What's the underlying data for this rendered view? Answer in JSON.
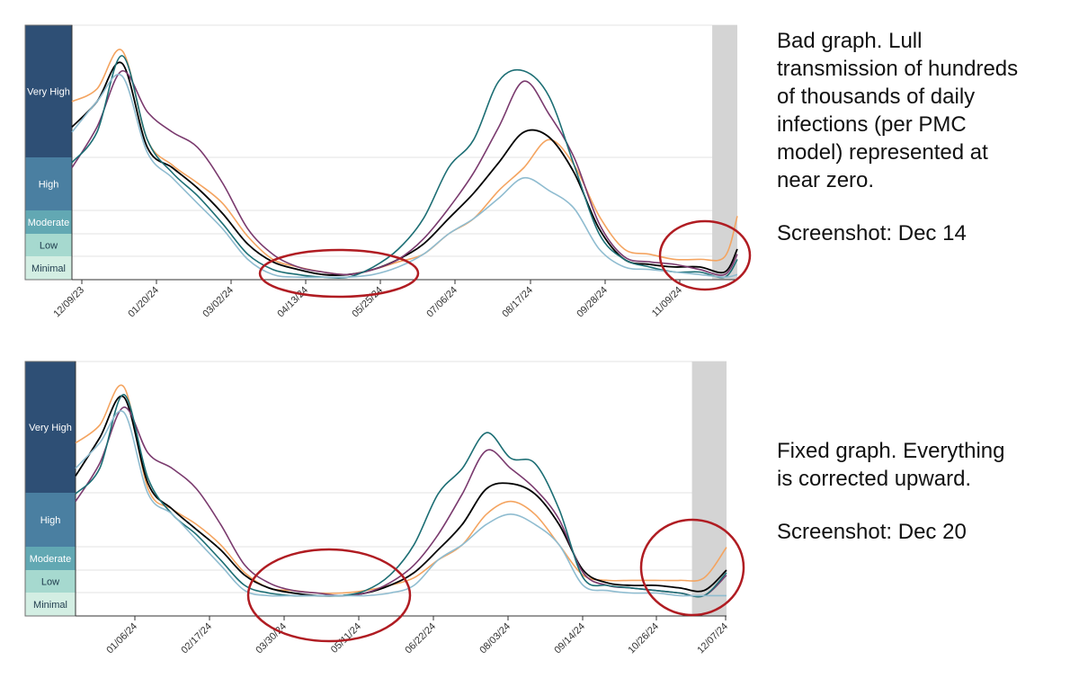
{
  "levels": [
    {
      "name": "Minimal",
      "color": "#d3eee3",
      "text": "dark"
    },
    {
      "name": "Low",
      "color": "#a6d9cf",
      "text": "dark"
    },
    {
      "name": "Moderate",
      "color": "#62a8b3",
      "text": "light"
    },
    {
      "name": "High",
      "color": "#4a7fa1",
      "text": "light"
    },
    {
      "name": "Very High",
      "color": "#2e4f75",
      "text": "light"
    }
  ],
  "chart_data": [
    {
      "type": "line",
      "title": "",
      "xlabel": "",
      "ylabel": "",
      "x_tick_labels": [
        "12/09/23",
        "01/20/24",
        "03/02/24",
        "04/13/24",
        "05/25/24",
        "07/06/24",
        "08/17/24",
        "09/28/24",
        "11/09/24"
      ],
      "y_levels": [
        "Minimal",
        "Low",
        "Moderate",
        "High",
        "Very High"
      ],
      "y_scale": "relative level (0 = bottom of Minimal, 1 = top of Very High)",
      "x_range": [
        "2023-12-09",
        "2024-12-14"
      ],
      "shaded_region": {
        "from": "2024-11-30",
        "to": "2024-12-14",
        "color": "#d4d4d4"
      },
      "series": [
        {
          "color": "#f4a460",
          "x": [
            "2023-12-09",
            "2023-12-23",
            "2024-01-06",
            "2024-01-20",
            "2024-02-03",
            "2024-02-17",
            "2024-03-02",
            "2024-03-16",
            "2024-03-30",
            "2024-04-13",
            "2024-04-27",
            "2024-05-11",
            "2024-05-25",
            "2024-06-08",
            "2024-06-22",
            "2024-07-06",
            "2024-07-20",
            "2024-08-03",
            "2024-08-17",
            "2024-08-31",
            "2024-09-14",
            "2024-09-28",
            "2024-10-12",
            "2024-10-26",
            "2024-11-09",
            "2024-11-23",
            "2024-12-07",
            "2024-12-14"
          ],
          "y": [
            0.7,
            0.75,
            0.9,
            0.55,
            0.45,
            0.38,
            0.3,
            0.17,
            0.08,
            0.05,
            0.03,
            0.02,
            0.04,
            0.07,
            0.1,
            0.18,
            0.24,
            0.35,
            0.44,
            0.55,
            0.45,
            0.25,
            0.12,
            0.1,
            0.08,
            0.08,
            0.09,
            0.25
          ]
        },
        {
          "color": "#000000",
          "x": [
            "2023-12-09",
            "2023-12-23",
            "2024-01-06",
            "2024-01-20",
            "2024-02-03",
            "2024-02-17",
            "2024-03-02",
            "2024-03-16",
            "2024-03-30",
            "2024-04-13",
            "2024-04-27",
            "2024-05-11",
            "2024-05-25",
            "2024-06-08",
            "2024-06-22",
            "2024-07-06",
            "2024-07-20",
            "2024-08-03",
            "2024-08-17",
            "2024-08-31",
            "2024-09-14",
            "2024-09-28",
            "2024-10-12",
            "2024-10-26",
            "2024-11-09",
            "2024-11-23",
            "2024-12-07",
            "2024-12-14"
          ],
          "y": [
            0.6,
            0.7,
            0.85,
            0.52,
            0.44,
            0.36,
            0.26,
            0.14,
            0.07,
            0.04,
            0.02,
            0.02,
            0.04,
            0.08,
            0.14,
            0.24,
            0.34,
            0.46,
            0.58,
            0.56,
            0.42,
            0.2,
            0.08,
            0.06,
            0.05,
            0.05,
            0.03,
            0.12
          ]
        },
        {
          "color": "#7a3a6e",
          "x": [
            "2023-12-09",
            "2023-12-23",
            "2024-01-06",
            "2024-01-20",
            "2024-02-03",
            "2024-02-17",
            "2024-03-02",
            "2024-03-16",
            "2024-03-30",
            "2024-04-13",
            "2024-04-27",
            "2024-05-11",
            "2024-05-25",
            "2024-06-08",
            "2024-06-22",
            "2024-07-06",
            "2024-07-20",
            "2024-08-03",
            "2024-08-17",
            "2024-08-31",
            "2024-09-14",
            "2024-09-28",
            "2024-10-12",
            "2024-10-26",
            "2024-11-09",
            "2024-11-23",
            "2024-12-07",
            "2024-12-14"
          ],
          "y": [
            0.44,
            0.6,
            0.82,
            0.66,
            0.58,
            0.52,
            0.38,
            0.2,
            0.1,
            0.05,
            0.03,
            0.02,
            0.04,
            0.08,
            0.16,
            0.28,
            0.42,
            0.6,
            0.78,
            0.65,
            0.48,
            0.22,
            0.09,
            0.07,
            0.06,
            0.04,
            0.02,
            0.1
          ]
        },
        {
          "color": "#1c6e74",
          "x": [
            "2023-12-09",
            "2023-12-23",
            "2024-01-06",
            "2024-01-20",
            "2024-02-03",
            "2024-02-17",
            "2024-03-02",
            "2024-03-16",
            "2024-03-30",
            "2024-04-13",
            "2024-04-27",
            "2024-05-11",
            "2024-05-25",
            "2024-06-08",
            "2024-06-22",
            "2024-07-06",
            "2024-07-20",
            "2024-08-03",
            "2024-08-17",
            "2024-08-31",
            "2024-09-14",
            "2024-09-28",
            "2024-10-12",
            "2024-10-26",
            "2024-11-09",
            "2024-11-23",
            "2024-12-07",
            "2024-12-14"
          ],
          "y": [
            0.46,
            0.58,
            0.88,
            0.55,
            0.42,
            0.33,
            0.22,
            0.1,
            0.04,
            0.02,
            0.01,
            0.01,
            0.05,
            0.12,
            0.24,
            0.44,
            0.55,
            0.78,
            0.82,
            0.72,
            0.45,
            0.18,
            0.08,
            0.05,
            0.03,
            0.03,
            0.01,
            0.08
          ]
        },
        {
          "color": "#8fbcd0",
          "x": [
            "2023-12-09",
            "2023-12-23",
            "2024-01-06",
            "2024-01-20",
            "2024-02-03",
            "2024-02-17",
            "2024-03-02",
            "2024-03-16",
            "2024-03-30",
            "2024-04-13",
            "2024-04-27",
            "2024-05-11",
            "2024-05-25",
            "2024-06-08",
            "2024-06-22",
            "2024-07-06",
            "2024-07-20",
            "2024-08-03",
            "2024-08-17",
            "2024-08-31",
            "2024-09-14",
            "2024-09-28",
            "2024-10-12",
            "2024-10-26",
            "2024-11-09",
            "2024-11-23",
            "2024-12-07",
            "2024-12-14"
          ],
          "y": [
            0.58,
            0.7,
            0.8,
            0.5,
            0.4,
            0.3,
            0.2,
            0.08,
            0.02,
            0.01,
            0.01,
            0.01,
            0.02,
            0.05,
            0.1,
            0.18,
            0.24,
            0.32,
            0.4,
            0.35,
            0.28,
            0.12,
            0.05,
            0.04,
            0.03,
            0.02,
            0.01,
            0.02
          ]
        }
      ]
    },
    {
      "type": "line",
      "title": "",
      "xlabel": "",
      "ylabel": "",
      "x_tick_labels": [
        "01/06/24",
        "02/17/24",
        "03/30/24",
        "05/11/24",
        "06/22/24",
        "08/03/24",
        "09/14/24",
        "10/26/24",
        "12/07/24"
      ],
      "y_levels": [
        "Minimal",
        "Low",
        "Moderate",
        "High",
        "Very High"
      ],
      "y_scale": "relative level (0 = bottom of Minimal, 1 = top of Very High)",
      "x_range": [
        "2023-12-09",
        "2024-12-20"
      ],
      "shaded_region": {
        "from": "2024-11-30",
        "to": "2024-12-20",
        "color": "#d4d4d4"
      },
      "series": [
        {
          "color": "#f4a460",
          "x": [
            "2023-12-09",
            "2023-12-23",
            "2024-01-06",
            "2024-01-20",
            "2024-02-03",
            "2024-02-17",
            "2024-03-02",
            "2024-03-16",
            "2024-03-30",
            "2024-04-13",
            "2024-04-27",
            "2024-05-11",
            "2024-05-25",
            "2024-06-08",
            "2024-06-22",
            "2024-07-06",
            "2024-07-20",
            "2024-08-03",
            "2024-08-17",
            "2024-08-31",
            "2024-09-14",
            "2024-09-28",
            "2024-10-12",
            "2024-10-26",
            "2024-11-09",
            "2024-11-23",
            "2024-12-07",
            "2024-12-20"
          ],
          "y": [
            0.68,
            0.75,
            0.9,
            0.5,
            0.42,
            0.36,
            0.28,
            0.17,
            0.11,
            0.1,
            0.09,
            0.09,
            0.1,
            0.12,
            0.15,
            0.22,
            0.28,
            0.4,
            0.45,
            0.4,
            0.28,
            0.16,
            0.14,
            0.14,
            0.14,
            0.14,
            0.15,
            0.27
          ]
        },
        {
          "color": "#000000",
          "x": [
            "2023-12-09",
            "2023-12-23",
            "2024-01-06",
            "2024-01-20",
            "2024-02-03",
            "2024-02-17",
            "2024-03-02",
            "2024-03-16",
            "2024-03-30",
            "2024-04-13",
            "2024-04-27",
            "2024-05-11",
            "2024-05-25",
            "2024-06-08",
            "2024-06-22",
            "2024-07-06",
            "2024-07-20",
            "2024-08-03",
            "2024-08-17",
            "2024-08-31",
            "2024-09-14",
            "2024-09-28",
            "2024-10-12",
            "2024-10-26",
            "2024-11-09",
            "2024-11-23",
            "2024-12-07",
            "2024-12-20"
          ],
          "y": [
            0.55,
            0.7,
            0.86,
            0.52,
            0.42,
            0.34,
            0.26,
            0.16,
            0.11,
            0.09,
            0.08,
            0.08,
            0.09,
            0.12,
            0.17,
            0.26,
            0.36,
            0.5,
            0.52,
            0.48,
            0.36,
            0.18,
            0.13,
            0.12,
            0.12,
            0.11,
            0.1,
            0.18
          ]
        },
        {
          "color": "#7a3a6e",
          "x": [
            "2023-12-09",
            "2023-12-23",
            "2024-01-06",
            "2024-01-20",
            "2024-02-03",
            "2024-02-17",
            "2024-03-02",
            "2024-03-16",
            "2024-03-30",
            "2024-04-13",
            "2024-04-27",
            "2024-05-11",
            "2024-05-25",
            "2024-06-08",
            "2024-06-22",
            "2024-07-06",
            "2024-07-20",
            "2024-08-03",
            "2024-08-17",
            "2024-08-31",
            "2024-09-14",
            "2024-09-28",
            "2024-10-12",
            "2024-10-26",
            "2024-11-09",
            "2024-11-23",
            "2024-12-07",
            "2024-12-20"
          ],
          "y": [
            0.45,
            0.6,
            0.82,
            0.64,
            0.58,
            0.5,
            0.36,
            0.2,
            0.13,
            0.1,
            0.09,
            0.08,
            0.09,
            0.13,
            0.2,
            0.32,
            0.48,
            0.65,
            0.58,
            0.5,
            0.38,
            0.17,
            0.12,
            0.11,
            0.1,
            0.09,
            0.08,
            0.16
          ]
        },
        {
          "color": "#1c6e74",
          "x": [
            "2023-12-09",
            "2023-12-23",
            "2024-01-06",
            "2024-01-20",
            "2024-02-03",
            "2024-02-17",
            "2024-03-02",
            "2024-03-16",
            "2024-03-30",
            "2024-04-13",
            "2024-04-27",
            "2024-05-11",
            "2024-05-25",
            "2024-06-08",
            "2024-06-22",
            "2024-07-06",
            "2024-07-20",
            "2024-08-03",
            "2024-08-17",
            "2024-08-31",
            "2024-09-14",
            "2024-09-28",
            "2024-10-12",
            "2024-10-26",
            "2024-11-09",
            "2024-11-23",
            "2024-12-07",
            "2024-12-20"
          ],
          "y": [
            0.48,
            0.58,
            0.87,
            0.54,
            0.4,
            0.32,
            0.22,
            0.12,
            0.09,
            0.08,
            0.08,
            0.08,
            0.1,
            0.16,
            0.28,
            0.48,
            0.58,
            0.72,
            0.62,
            0.6,
            0.42,
            0.15,
            0.12,
            0.11,
            0.1,
            0.09,
            0.08,
            0.17
          ]
        },
        {
          "color": "#8fbcd0",
          "x": [
            "2023-12-09",
            "2023-12-23",
            "2024-01-06",
            "2024-01-20",
            "2024-02-03",
            "2024-02-17",
            "2024-03-02",
            "2024-03-16",
            "2024-03-30",
            "2024-04-13",
            "2024-04-27",
            "2024-05-11",
            "2024-05-25",
            "2024-06-08",
            "2024-06-22",
            "2024-07-06",
            "2024-07-20",
            "2024-08-03",
            "2024-08-17",
            "2024-08-31",
            "2024-09-14",
            "2024-09-28",
            "2024-10-12",
            "2024-10-26",
            "2024-11-09",
            "2024-11-23",
            "2024-12-07",
            "2024-12-20"
          ],
          "y": [
            0.58,
            0.68,
            0.8,
            0.48,
            0.4,
            0.3,
            0.2,
            0.1,
            0.08,
            0.08,
            0.08,
            0.08,
            0.08,
            0.09,
            0.12,
            0.22,
            0.28,
            0.36,
            0.4,
            0.36,
            0.28,
            0.12,
            0.1,
            0.09,
            0.09,
            0.08,
            0.08,
            0.08
          ]
        }
      ]
    }
  ],
  "annotations": [
    {
      "text": "Bad graph. Lull\ntransmission of hundreds\nof thousands of daily\ninfections (per PMC\nmodel) represented at\nnear zero.",
      "screenshot": "Screenshot: Dec 14"
    },
    {
      "text": "Fixed graph. Everything\nis corrected upward.",
      "screenshot": "Screenshot: Dec 20"
    }
  ]
}
